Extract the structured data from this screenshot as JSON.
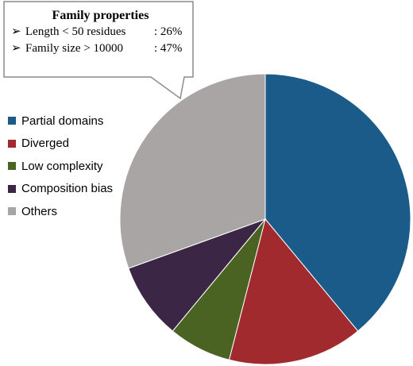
{
  "callout": {
    "title": "Family properties",
    "bullet": "➢",
    "items": [
      {
        "label": "Length < 50 residues",
        "value": ":  26%"
      },
      {
        "label": "Family size > 10000",
        "value": ":  47%"
      }
    ]
  },
  "chart_data": {
    "type": "pie",
    "title": "",
    "legend_position": "left",
    "labels": [
      "Partial domains",
      "Diverged",
      "Low complexity",
      "Composition bias",
      "Others"
    ],
    "values": [
      39,
      15,
      7,
      8.5,
      30.5
    ],
    "colors": [
      "#1b5b8a",
      "#a12a2f",
      "#4a6322",
      "#3c2645",
      "#aaa5a5"
    ],
    "start_angle_deg": 0,
    "direction": "clockwise"
  }
}
